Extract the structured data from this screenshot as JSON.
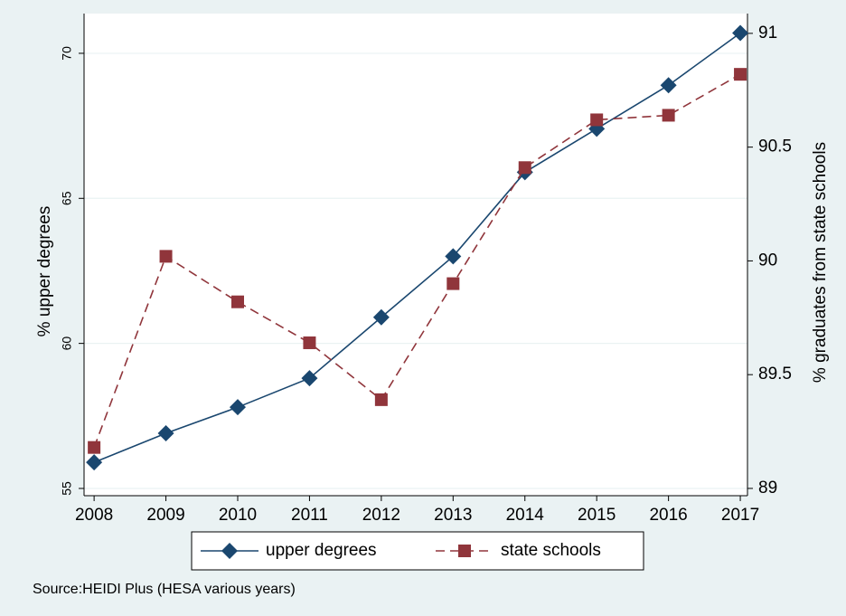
{
  "chart_data": {
    "type": "line",
    "x": [
      2008,
      2009,
      2010,
      2011,
      2012,
      2013,
      2014,
      2015,
      2016,
      2017
    ],
    "xlim": [
      2007.86,
      2017.1
    ],
    "xticks": [
      2008,
      2009,
      2010,
      2011,
      2012,
      2013,
      2014,
      2015,
      2016,
      2017
    ],
    "ylim": [
      54.75,
      71.37
    ],
    "yticks": [
      55,
      60,
      65,
      70
    ],
    "y2lim": [
      88.968,
      91.087
    ],
    "y2ticks": [
      89,
      89.5,
      90,
      90.5,
      91
    ],
    "ylabel": "% upper degrees",
    "y2label": "% graduates from state schools",
    "grid": true,
    "legend": "bottom",
    "note": "Source:HEIDI Plus (HESA various years)",
    "series": [
      {
        "name": "upper degrees",
        "color": "#1a476f",
        "marker": "diamond",
        "line_style": "solid",
        "values": [
          55.9,
          56.9,
          57.8,
          58.8,
          60.9,
          63.0,
          65.9,
          67.4,
          68.9,
          70.7
        ]
      },
      {
        "name": "state schools",
        "color": "#90353b",
        "marker": "square",
        "line_style": "dashed",
        "axis": "y2",
        "values": [
          89.18,
          90.02,
          89.82,
          89.64,
          89.39,
          89.9,
          90.41,
          90.62,
          90.64,
          90.82
        ]
      }
    ]
  }
}
